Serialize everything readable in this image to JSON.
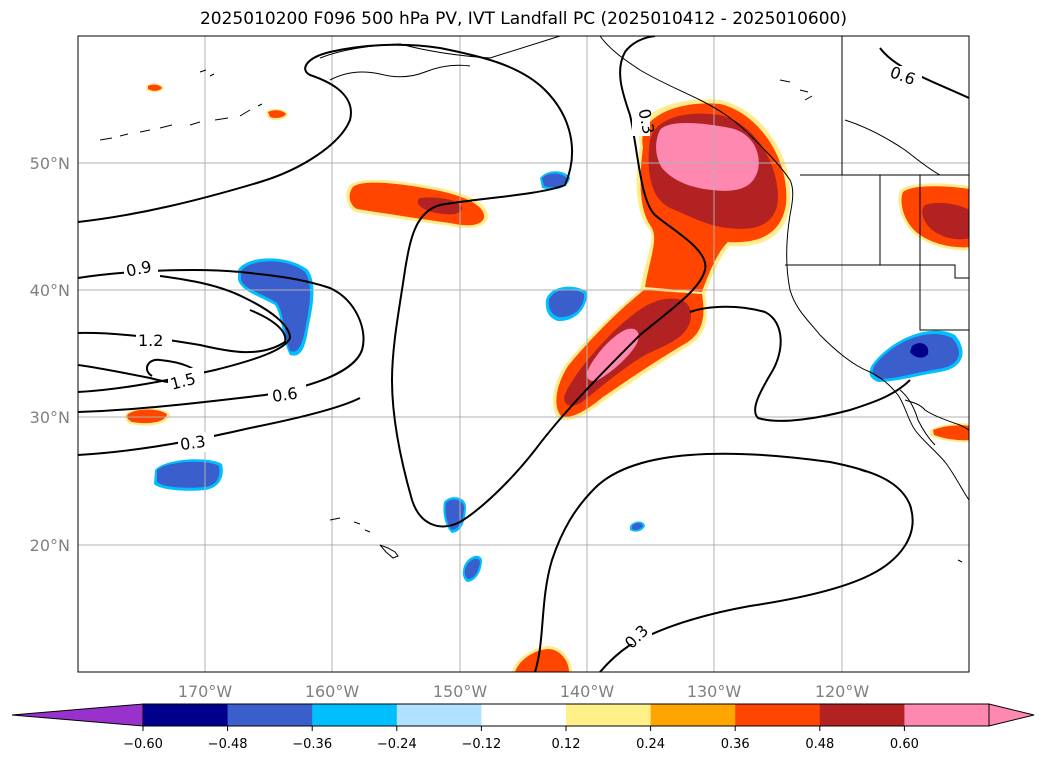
{
  "title": "2025010200 F096 500 hPa PV, IVT Landfall PC (2025010412 - 2025010600)",
  "axes": {
    "lat_ticks": [
      "50°N",
      "40°N",
      "30°N",
      "20°N"
    ],
    "lon_ticks": [
      "170°W",
      "160°W",
      "150°W",
      "140°W",
      "130°W",
      "120°W"
    ]
  },
  "contour_labels": [
    "0.6",
    "0.3",
    "0.9",
    "1.2",
    "1.5",
    "0.6",
    "0.3",
    "0.3"
  ],
  "colorbar": {
    "tick_labels": [
      "−0.60",
      "−0.48",
      "−0.36",
      "−0.24",
      "−0.12",
      "0.12",
      "0.24",
      "0.36",
      "0.48",
      "0.60"
    ],
    "colors": [
      "#9932cc",
      "#00008b",
      "#3a5fcd",
      "#00bfff",
      "#b0e2ff",
      "#ffffff",
      "#fff08a",
      "#ffa500",
      "#ff4500",
      "#b22222",
      "#ff88b0",
      "#ff88b0"
    ]
  },
  "colors": {
    "positive_light": "#ffec8b",
    "positive_orange": "#ff4500",
    "positive_red": "#b22222",
    "positive_pink": "#ff88b0",
    "negative_blue": "#3a5fcd",
    "negative_light": "#00bfff",
    "negative_dark": "#00008b",
    "grid": "#b0b0b0",
    "coast": "#000000"
  }
}
